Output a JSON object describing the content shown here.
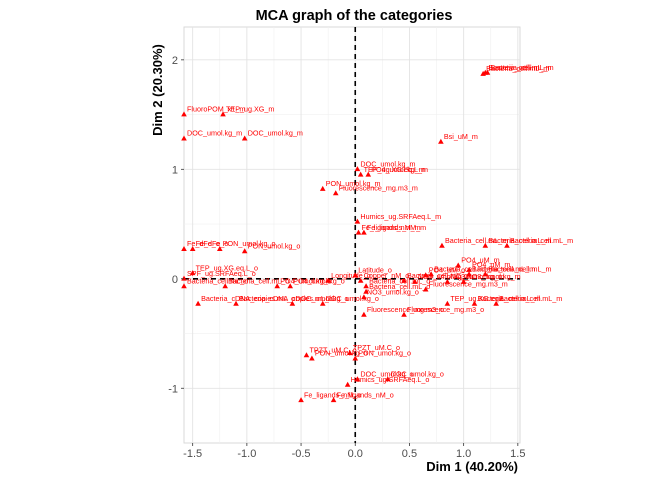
{
  "chart_data": {
    "type": "scatter",
    "title": "MCA graph of the categories",
    "xlabel": "Dim 1 (40.20%)",
    "ylabel": "Dim 2 (20.30%)",
    "xlim": [
      -1.58,
      1.52
    ],
    "ylim": [
      -1.5,
      2.3
    ],
    "xticks": [
      -1.5,
      -1.0,
      -0.5,
      0.0,
      0.5,
      1.0,
      1.5
    ],
    "xtick_labels": [
      "-1.5",
      "-1.0",
      "-0.5",
      "0.0",
      "0.5",
      "1.0",
      "1.5"
    ],
    "yticks": [
      -1,
      0,
      1,
      2
    ],
    "ytick_labels": [
      "-1",
      "0",
      "1",
      "2"
    ],
    "grid": true,
    "reference_lines": {
      "x": 0,
      "y": 0,
      "style": "dashed"
    },
    "marker_color": "#ff0000",
    "label_color": "#ff0000",
    "points": [
      {
        "label": "Bsi_uM_m",
        "x": 0.79,
        "y": 1.25
      },
      {
        "label": "Bacteria_cell.mL_m",
        "x": 1.18,
        "y": 1.87
      },
      {
        "label": "Bacteria_cell.mL_m",
        "x": 1.2,
        "y": 1.88
      },
      {
        "label": "Bacteria_cell.mL_m",
        "x": 1.22,
        "y": 1.88
      },
      {
        "label": "FluoroPOM_x1_m",
        "x": -1.58,
        "y": 1.5
      },
      {
        "label": "TEP_ug.XG_m",
        "x": -1.22,
        "y": 1.5
      },
      {
        "label": "DOC_umol.kg_m",
        "x": -1.58,
        "y": 1.28
      },
      {
        "label": "DOC_umol.kg_m",
        "x": -1.02,
        "y": 1.28
      },
      {
        "label": "DOC_umol.kg_m",
        "x": 0.02,
        "y": 1.0
      },
      {
        "label": "TEP_ug.XG.eq.L_m",
        "x": 0.05,
        "y": 0.95
      },
      {
        "label": "PO4_umol.kg_m",
        "x": 0.12,
        "y": 0.95
      },
      {
        "label": "PON_umol.kg_m",
        "x": -0.3,
        "y": 0.82
      },
      {
        "label": "Fluorescence_mg.m3_m",
        "x": -0.18,
        "y": 0.78
      },
      {
        "label": "Humics_ug.SRFAeq.L_m",
        "x": 0.02,
        "y": 0.52
      },
      {
        "label": "Fe_ligands_nM_m",
        "x": 0.03,
        "y": 0.42
      },
      {
        "label": "Fe_ligands_nM_m",
        "x": 0.08,
        "y": 0.42
      },
      {
        "label": "Bacteria_cell.mL_m",
        "x": 0.8,
        "y": 0.3
      },
      {
        "label": "Bacteria_cell.mL_m",
        "x": 1.2,
        "y": 0.3
      },
      {
        "label": "Bacteria_cell.mL_m",
        "x": 1.4,
        "y": 0.3
      },
      {
        "label": "Fe_dFe_o",
        "x": -1.58,
        "y": 0.27
      },
      {
        "label": "Fe_dFe_o",
        "x": -1.5,
        "y": 0.27
      },
      {
        "label": "PON_umol.kg_o",
        "x": -1.25,
        "y": 0.27
      },
      {
        "label": "PON_umol.kg_o",
        "x": -1.02,
        "y": 0.25
      },
      {
        "label": "TEP_ug.XG.eq.L_o",
        "x": -1.5,
        "y": 0.05
      },
      {
        "label": "SPF_ug.SRFAeq.L_o",
        "x": -1.58,
        "y": 0.0
      },
      {
        "label": "Bacteria_cell.mL_o",
        "x": -1.58,
        "y": -0.07
      },
      {
        "label": "Bacteria_cell.mL_o",
        "x": -1.2,
        "y": -0.07
      },
      {
        "label": "PO4_umol.kg_o",
        "x": -0.72,
        "y": -0.07
      },
      {
        "label": "PO4_umol.kg_o",
        "x": -0.6,
        "y": -0.07
      },
      {
        "label": "Bacteria_cDNA_copies.mL_o",
        "x": -1.45,
        "y": -0.23
      },
      {
        "label": "Bacteria_cDNA_copies.mL_o",
        "x": -1.1,
        "y": -0.23
      },
      {
        "label": "DOC_umol.kg_o",
        "x": -0.58,
        "y": -0.23
      },
      {
        "label": "DOC_umol.kg_o",
        "x": -0.3,
        "y": -0.23
      },
      {
        "label": "Latitude_o",
        "x": 0.0,
        "y": 0.03
      },
      {
        "label": "Longitude_o",
        "x": -0.25,
        "y": -0.02
      },
      {
        "label": "Copper_nM_o",
        "x": 0.05,
        "y": -0.02
      },
      {
        "label": "Bacteria_cell.mL_o",
        "x": 0.45,
        "y": -0.02
      },
      {
        "label": "Bacteria_cell.mL_o",
        "x": 0.1,
        "y": -0.07
      },
      {
        "label": "Bacteria_cell.mL_o",
        "x": 0.1,
        "y": -0.12
      },
      {
        "label": "NO3_umol.kg_o",
        "x": 0.08,
        "y": -0.17
      },
      {
        "label": "PO4_uM_o",
        "x": 0.65,
        "y": 0.03
      },
      {
        "label": "PO4_uM_m",
        "x": 0.95,
        "y": 0.12
      },
      {
        "label": "PO4_uM_m",
        "x": 1.05,
        "y": 0.08
      },
      {
        "label": "Bacteria_cell.mL_m",
        "x": 0.7,
        "y": 0.04
      },
      {
        "label": "Bacteria_cell.mL_m",
        "x": 1.05,
        "y": 0.04
      },
      {
        "label": "Bacteria_cell.mL_m",
        "x": 1.2,
        "y": 0.04
      },
      {
        "label": "NO3_umol.kg_m",
        "x": 0.55,
        "y": -0.03
      },
      {
        "label": "NO3_umol.kg_m",
        "x": 0.85,
        "y": -0.03
      },
      {
        "label": "NO3_umol.kg_m",
        "x": 1.0,
        "y": -0.03
      },
      {
        "label": "Fluorescence_mg.m3_m",
        "x": 0.65,
        "y": -0.1
      },
      {
        "label": "TEP_ug.XG.eq.L_m",
        "x": 0.85,
        "y": -0.23
      },
      {
        "label": "Bacteria_cell.mL_m",
        "x": 1.1,
        "y": -0.23
      },
      {
        "label": "Bacteria_cell.mL_m",
        "x": 1.3,
        "y": -0.23
      },
      {
        "label": "Fluorescence_mg.m3_o",
        "x": 0.08,
        "y": -0.33
      },
      {
        "label": "Fluorescence_mg.m3_o",
        "x": 0.45,
        "y": -0.33
      },
      {
        "label": "TPZT_uM.C_o",
        "x": -0.45,
        "y": -0.7
      },
      {
        "label": "TPZT_uM.C_o",
        "x": -0.05,
        "y": -0.68
      },
      {
        "label": "PON_umol.kg_o",
        "x": -0.4,
        "y": -0.73
      },
      {
        "label": "PON_umol.kg_o",
        "x": 0.0,
        "y": -0.73
      },
      {
        "label": "DOC_umol.kg_o",
        "x": 0.02,
        "y": -0.92
      },
      {
        "label": "DOC_umol.kg_o",
        "x": 0.3,
        "y": -0.92
      },
      {
        "label": "Humics_ug.SRFAeq.L_o",
        "x": -0.07,
        "y": -0.97
      },
      {
        "label": "Fe_ligands_nM_o",
        "x": -0.5,
        "y": -1.11
      },
      {
        "label": "Fe_ligands_nM_o",
        "x": -0.2,
        "y": -1.11
      }
    ]
  }
}
